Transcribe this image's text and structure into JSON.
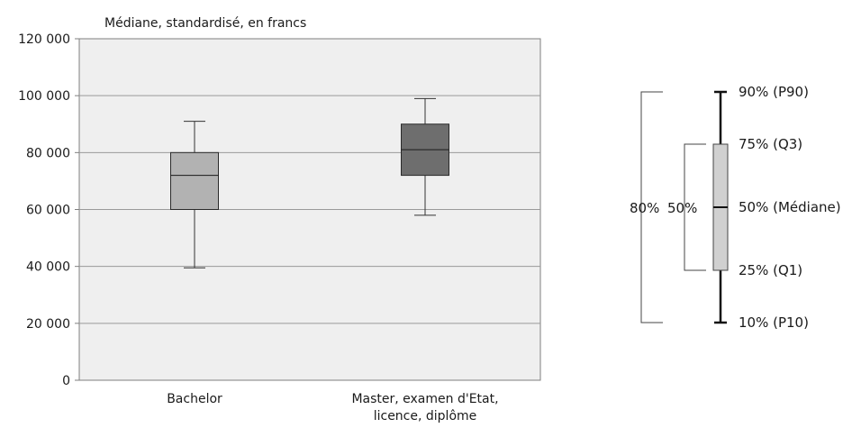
{
  "chart_data": {
    "type": "boxplot",
    "subtitle": "Médiane, standardisé, en francs",
    "ylim": [
      0,
      120000
    ],
    "y_ticks": [
      0,
      20000,
      40000,
      60000,
      80000,
      100000,
      120000
    ],
    "y_tick_labels": [
      "0",
      "20 000",
      "40 000",
      "60 000",
      "80 000",
      "100 000",
      "120 000"
    ],
    "grid": true,
    "categories": [
      {
        "lines": [
          "Bachelor"
        ]
      },
      {
        "lines": [
          "Master, examen d'Etat,",
          "licence, diplôme"
        ]
      }
    ],
    "boxes": [
      {
        "p10": 39500,
        "q1": 60000,
        "median": 72000,
        "q3": 80000,
        "p90": 91000,
        "color": "#b2b2b2"
      },
      {
        "p10": 58000,
        "q1": 72000,
        "median": 81000,
        "q3": 90000,
        "p90": 99000,
        "color": "#6e6e6e"
      }
    ],
    "legend_key": {
      "labels": [
        "90% (P90)",
        "75% (Q3)",
        "50% (Médiane)",
        "25% (Q1)",
        "10% (P10)"
      ],
      "range_labels": [
        "80%",
        "50%"
      ],
      "box_color": "#d0d0d0"
    }
  },
  "colors": {
    "plot_background": "#efefef",
    "grid": "#9a9a9a",
    "axis": "#7f7f7f",
    "whisker": "#333333"
  }
}
